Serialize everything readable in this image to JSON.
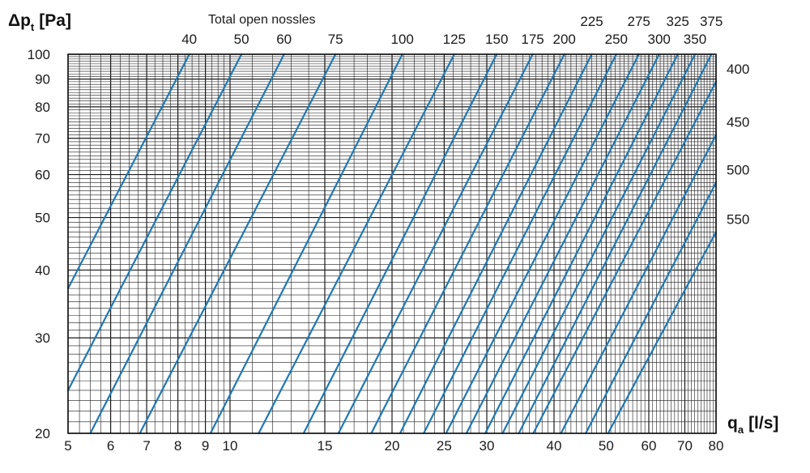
{
  "chart_data": {
    "type": "line",
    "x_scale": "log",
    "y_scale": "log",
    "xlim": [
      5,
      80
    ],
    "ylim": [
      20,
      100
    ],
    "grid": true,
    "xlabel": {
      "main": "q",
      "sub": "a",
      "unit": "[l/s]"
    },
    "ylabel": {
      "prefix": "Δ",
      "main": "p",
      "sub": "t",
      "unit": "[Pa]"
    },
    "top_axis_title": "Total open nossles",
    "x_ticks": [
      "5",
      "6",
      "7",
      "8",
      "9",
      "10",
      "15",
      "20",
      "25",
      "30",
      "40",
      "50",
      "60",
      "70",
      "80"
    ],
    "y_ticks": [
      "20",
      "30",
      "40",
      "50",
      "60",
      "70",
      "80",
      "90",
      "100"
    ],
    "line_color": "#1f78b4",
    "series": [
      {
        "name": "40",
        "label": "40",
        "x": [
          5.0,
          8.4
        ],
        "y": [
          37,
          100
        ]
      },
      {
        "name": "50",
        "label": "50",
        "x": [
          5.0,
          10.5
        ],
        "y": [
          24,
          100
        ]
      },
      {
        "name": "60",
        "label": "60",
        "x": [
          5.5,
          12.6
        ],
        "y": [
          20,
          100
        ]
      },
      {
        "name": "75",
        "label": "75",
        "x": [
          6.8,
          15.7
        ],
        "y": [
          20,
          100
        ]
      },
      {
        "name": "100",
        "label": "100",
        "x": [
          9.2,
          20.9
        ],
        "y": [
          20,
          100
        ]
      },
      {
        "name": "125",
        "label": "125",
        "x": [
          11.3,
          26.1
        ],
        "y": [
          20,
          100
        ]
      },
      {
        "name": "150",
        "label": "150",
        "x": [
          13.7,
          31.3
        ],
        "y": [
          20,
          100
        ]
      },
      {
        "name": "175",
        "label": "175",
        "x": [
          15.9,
          36.5
        ],
        "y": [
          20,
          100
        ]
      },
      {
        "name": "200",
        "label": "200",
        "x": [
          18.3,
          41.8
        ],
        "y": [
          20,
          100
        ]
      },
      {
        "name": "225",
        "label": "225",
        "x": [
          20.7,
          47.0
        ],
        "y": [
          20,
          100
        ]
      },
      {
        "name": "250",
        "label": "250",
        "x": [
          22.9,
          52.2
        ],
        "y": [
          20,
          100
        ]
      },
      {
        "name": "275",
        "label": "275",
        "x": [
          25.2,
          57.5
        ],
        "y": [
          20,
          100
        ]
      },
      {
        "name": "300",
        "label": "300",
        "x": [
          27.5,
          62.7
        ],
        "y": [
          20,
          100
        ]
      },
      {
        "name": "325",
        "label": "325",
        "x": [
          29.8,
          67.9
        ],
        "y": [
          20,
          100
        ]
      },
      {
        "name": "350",
        "label": "350",
        "x": [
          32.1,
          73.1
        ],
        "y": [
          20,
          100
        ]
      },
      {
        "name": "375",
        "label": "375",
        "x": [
          34.4,
          78.4
        ],
        "y": [
          20,
          100
        ]
      },
      {
        "name": "400",
        "label": "400",
        "x": [
          36.6,
          80.0
        ],
        "y": [
          20,
          89
        ]
      },
      {
        "name": "450",
        "label": "450",
        "x": [
          41.2,
          80.0
        ],
        "y": [
          20,
          71
        ]
      },
      {
        "name": "500",
        "label": "500",
        "x": [
          45.8,
          80.0
        ],
        "y": [
          20,
          58
        ]
      },
      {
        "name": "550",
        "label": "550",
        "x": [
          50.4,
          80.0
        ],
        "y": [
          20,
          47
        ]
      }
    ],
    "top_labels": [
      "40",
      "50",
      "60",
      "75",
      "100",
      "125",
      "150",
      "175",
      "200",
      "225",
      "250",
      "275",
      "300",
      "325",
      "350",
      "375"
    ],
    "right_labels": [
      "400",
      "450",
      "500",
      "550"
    ]
  }
}
